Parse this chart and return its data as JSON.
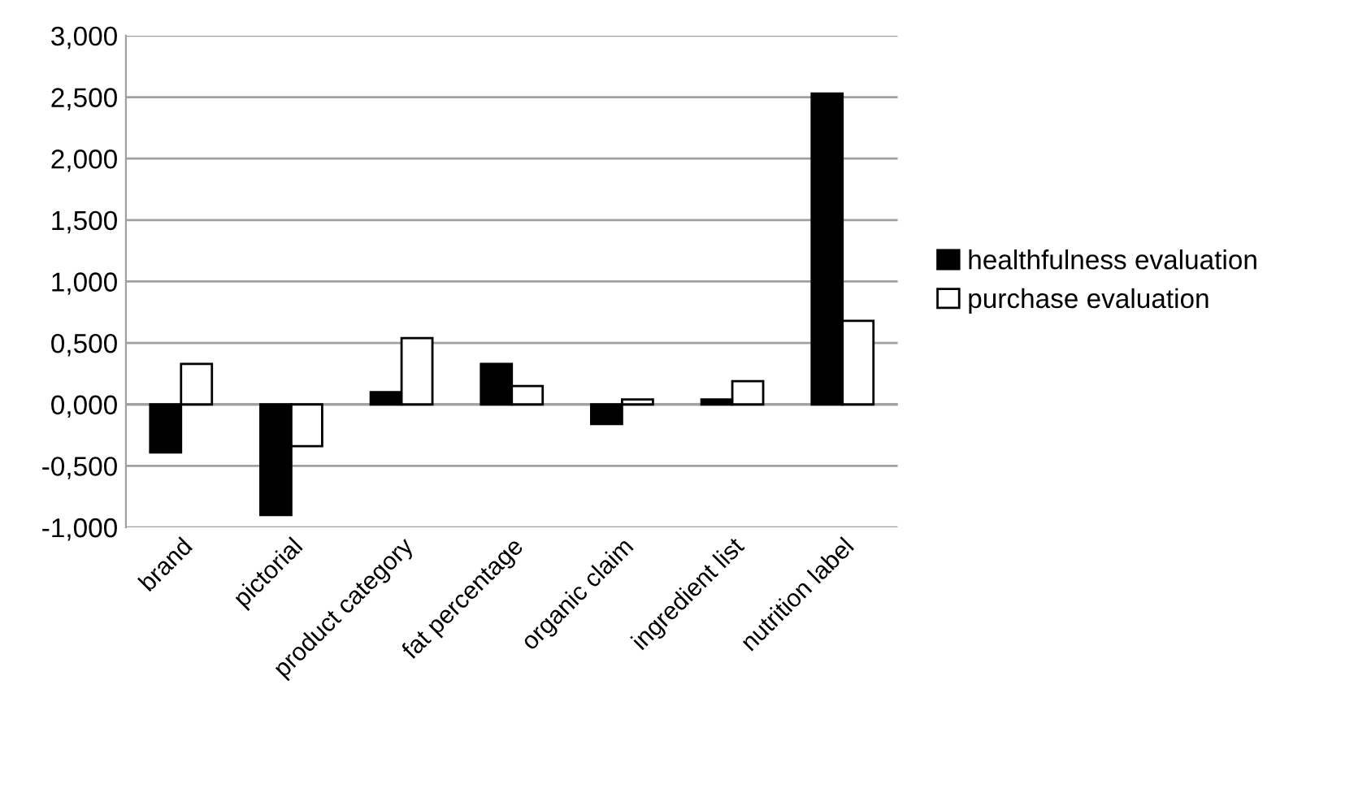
{
  "chart_data": {
    "type": "bar",
    "categories": [
      "brand",
      "pictorial",
      "product category",
      "fat percentage",
      "organic claim",
      "ingredient list",
      "nutrition label"
    ],
    "series": [
      {
        "name": "healthfulness evaluation",
        "color": "#000000",
        "values": [
          -0.39,
          -0.9,
          0.1,
          0.33,
          -0.16,
          0.04,
          2.53
        ]
      },
      {
        "name": "purchase evaluation",
        "color": "#ffffff",
        "values": [
          0.33,
          -0.34,
          0.54,
          0.15,
          0.04,
          0.19,
          0.68
        ]
      }
    ],
    "ylim": [
      -1,
      3
    ],
    "yticks": [
      {
        "value": -1,
        "label": "-1,000"
      },
      {
        "value": -0.5,
        "label": "-0,500"
      },
      {
        "value": 0,
        "label": "0,000"
      },
      {
        "value": 0.5,
        "label": "0,500"
      },
      {
        "value": 1,
        "label": "1,000"
      },
      {
        "value": 1.5,
        "label": "1,500"
      },
      {
        "value": 2,
        "label": "2,000"
      },
      {
        "value": 2.5,
        "label": "2,500"
      },
      {
        "value": 3,
        "label": "3,000"
      }
    ],
    "grid": "y",
    "legend": "right"
  }
}
